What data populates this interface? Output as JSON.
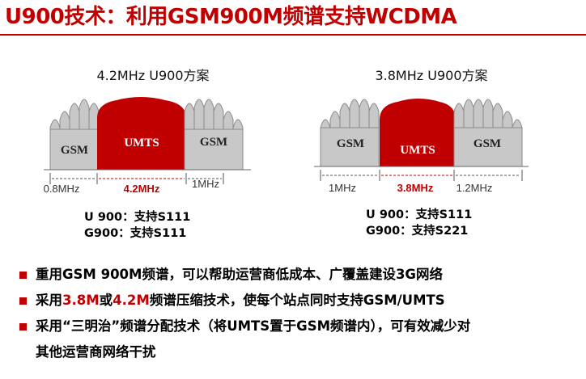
{
  "page_title": "U900技术：利用GSM900M频谱支持WCDMA",
  "diagrams": [
    {
      "title": "4.2MHz  U900方案",
      "blocks": {
        "left": "GSM",
        "center": "UMTS",
        "right": "GSM"
      },
      "widths": {
        "left": "0.8MHz",
        "center": "4.2MHz",
        "right": "1MHz"
      },
      "support": {
        "line1": "U 900：支持S111",
        "line2": "G900：支持S111"
      }
    },
    {
      "title": "3.8MHz   U900方案",
      "blocks": {
        "left": "GSM",
        "center": "UMTS",
        "right": "GSM"
      },
      "widths": {
        "left": "1MHz",
        "center": "3.8MHz",
        "right": "1.2MHz"
      },
      "support": {
        "line1": "U 900：支持S111",
        "line2": "G900：支持S221"
      }
    }
  ],
  "bullets": [
    {
      "text": "重用GSM 900M频谱，可以帮助运营商低成本、广覆盖建设3G网络"
    },
    {
      "prefix": "采用",
      "hl1": "3.8M",
      "mid": "或",
      "hl2": "4.2M",
      "suffix": "频谱压缩技术，使每个站点同时支持GSM/UMTS"
    },
    {
      "line1": "采用“三明治”频谱分配技术（将UMTS置于GSM频谱内），可有效减少对",
      "line2": "其他运营商网络干扰"
    }
  ],
  "colors": {
    "accent": "#c00000",
    "gsm_fill": "#c8c8c8",
    "gsm_stroke": "#8a8a8a"
  }
}
